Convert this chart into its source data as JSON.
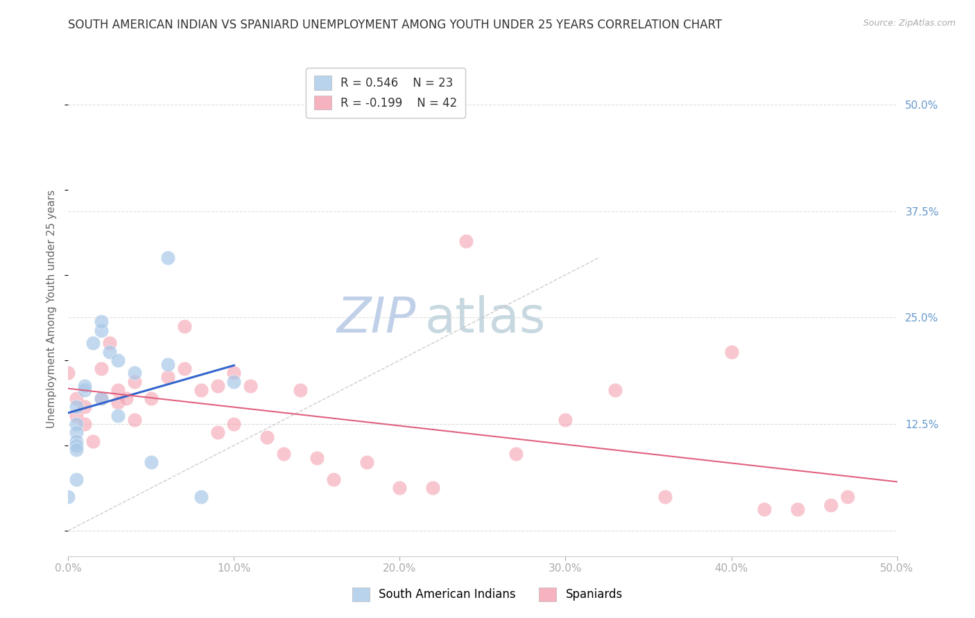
{
  "title": "SOUTH AMERICAN INDIAN VS SPANIARD UNEMPLOYMENT AMONG YOUTH UNDER 25 YEARS CORRELATION CHART",
  "source": "Source: ZipAtlas.com",
  "ylabel": "Unemployment Among Youth under 25 years",
  "xlim": [
    0,
    0.5
  ],
  "ylim": [
    -0.03,
    0.55
  ],
  "x_ticks": [
    0.0,
    0.1,
    0.2,
    0.3,
    0.4,
    0.5
  ],
  "x_tick_labels": [
    "0.0%",
    "10.0%",
    "20.0%",
    "30.0%",
    "40.0%",
    "50.0%"
  ],
  "y_ticks_right": [
    0.0,
    0.125,
    0.25,
    0.375,
    0.5
  ],
  "y_tick_labels_right": [
    "",
    "12.5%",
    "25.0%",
    "37.5%",
    "50.0%"
  ],
  "legend_blue_r": "R = 0.546",
  "legend_blue_n": "N = 23",
  "legend_pink_r": "R = -0.199",
  "legend_pink_n": "N = 42",
  "blue_color": "#a8c8e8",
  "pink_color": "#f4a0b0",
  "blue_line_color": "#3366cc",
  "pink_line_color": "#e06080",
  "diagonal_line_color": "#c0c0c0",
  "watermark_zip_color": "#c8d8f0",
  "watermark_atlas_color": "#c8d8e8",
  "blue_scatter_x": [
    0.005,
    0.005,
    0.005,
    0.005,
    0.005,
    0.005,
    0.005,
    0.01,
    0.01,
    0.015,
    0.02,
    0.02,
    0.02,
    0.025,
    0.03,
    0.03,
    0.04,
    0.05,
    0.06,
    0.06,
    0.08,
    0.1,
    0.0
  ],
  "blue_scatter_y": [
    0.145,
    0.125,
    0.115,
    0.105,
    0.1,
    0.095,
    0.06,
    0.165,
    0.17,
    0.22,
    0.155,
    0.235,
    0.245,
    0.21,
    0.135,
    0.2,
    0.185,
    0.08,
    0.195,
    0.32,
    0.04,
    0.175,
    0.04
  ],
  "pink_scatter_x": [
    0.0,
    0.005,
    0.005,
    0.01,
    0.01,
    0.015,
    0.02,
    0.02,
    0.025,
    0.03,
    0.03,
    0.035,
    0.04,
    0.04,
    0.05,
    0.06,
    0.07,
    0.07,
    0.08,
    0.09,
    0.09,
    0.1,
    0.1,
    0.11,
    0.12,
    0.13,
    0.14,
    0.15,
    0.16,
    0.18,
    0.2,
    0.22,
    0.24,
    0.27,
    0.3,
    0.33,
    0.36,
    0.4,
    0.42,
    0.44,
    0.46,
    0.47
  ],
  "pink_scatter_y": [
    0.185,
    0.155,
    0.135,
    0.145,
    0.125,
    0.105,
    0.19,
    0.155,
    0.22,
    0.165,
    0.15,
    0.155,
    0.175,
    0.13,
    0.155,
    0.18,
    0.24,
    0.19,
    0.165,
    0.17,
    0.115,
    0.185,
    0.125,
    0.17,
    0.11,
    0.09,
    0.165,
    0.085,
    0.06,
    0.08,
    0.05,
    0.05,
    0.34,
    0.09,
    0.13,
    0.165,
    0.04,
    0.21,
    0.025,
    0.025,
    0.03,
    0.04
  ],
  "title_fontsize": 12,
  "axis_label_fontsize": 11,
  "tick_fontsize": 11,
  "background_color": "#ffffff"
}
